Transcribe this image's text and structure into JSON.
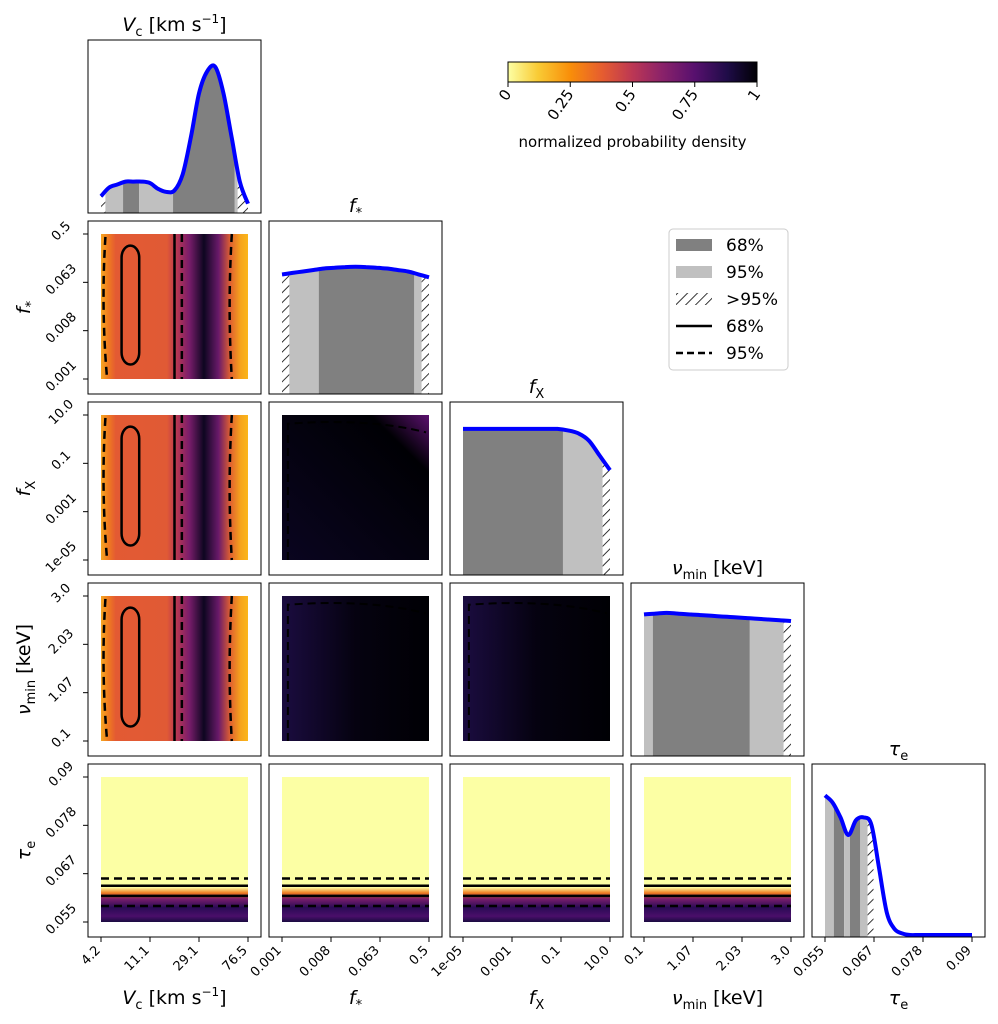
{
  "chart_data": {
    "type": "corner",
    "params": [
      {
        "key": "vc",
        "label_main": "V",
        "label_sub": "c",
        "label_unit": " [km s",
        "label_sup": "−1",
        "label_end": "]",
        "ticks": [
          "4.2",
          "11.1",
          "29.1",
          "76.5"
        ]
      },
      {
        "key": "fstar",
        "label_main": "f",
        "label_sub": "*",
        "label_unit": "",
        "label_sup": "",
        "label_end": "",
        "ticks": [
          "0.001",
          "0.008",
          "0.063",
          "0.5"
        ]
      },
      {
        "key": "fx",
        "label_main": "f",
        "label_sub": "X",
        "label_unit": "",
        "label_sup": "",
        "label_end": "",
        "ticks": [
          "1e-05",
          "0.001",
          "0.1",
          "10.0"
        ]
      },
      {
        "key": "numin",
        "label_main": "ν",
        "label_sub": "min",
        "label_unit": " [keV]",
        "label_sup": "",
        "label_end": "",
        "ticks": [
          "0.1",
          "1.07",
          "2.03",
          "3.0"
        ]
      },
      {
        "key": "tau",
        "label_main": "τ",
        "label_sub": "e",
        "label_unit": "",
        "label_sup": "",
        "label_end": "",
        "ticks": [
          "0.055",
          "0.067",
          "0.078",
          "0.09"
        ]
      }
    ],
    "marginals": [
      {
        "curve": [
          0.1,
          0.16,
          0.18,
          0.2,
          0.2,
          0.2,
          0.19,
          0.15,
          0.13,
          0.14,
          0.25,
          0.5,
          0.8,
          0.95,
          0.98,
          0.8,
          0.5,
          0.2,
          0.05
        ],
        "bands": [
          [
            0,
            0.03,
            "h"
          ],
          [
            0.03,
            0.15,
            "95"
          ],
          [
            0.15,
            0.26,
            "68"
          ],
          [
            0.26,
            0.49,
            "95"
          ],
          [
            0.49,
            0.91,
            "68"
          ],
          [
            0.91,
            0.93,
            "95"
          ],
          [
            0.93,
            1.0,
            "h"
          ]
        ]
      },
      {
        "curve": [
          0.8,
          0.81,
          0.82,
          0.83,
          0.84,
          0.845,
          0.85,
          0.852,
          0.85,
          0.845,
          0.84,
          0.83,
          0.82,
          0.8,
          0.78
        ],
        "bands": [
          [
            0,
            0.05,
            "h"
          ],
          [
            0.05,
            0.25,
            "95"
          ],
          [
            0.25,
            0.9,
            "68"
          ],
          [
            0.9,
            0.95,
            "95"
          ],
          [
            0.95,
            1.0,
            "h"
          ]
        ]
      },
      {
        "curve": [
          0.98,
          0.98,
          0.98,
          0.98,
          0.98,
          0.98,
          0.98,
          0.98,
          0.98,
          0.98,
          0.97,
          0.95,
          0.9,
          0.8,
          0.7
        ],
        "bands": [
          [
            0,
            0.68,
            "68"
          ],
          [
            0.68,
            0.95,
            "95"
          ],
          [
            0.95,
            1.0,
            "h"
          ]
        ]
      },
      {
        "curve": [
          0.95,
          0.955,
          0.96,
          0.955,
          0.95,
          0.945,
          0.94,
          0.935,
          0.93,
          0.925,
          0.92,
          0.915,
          0.91,
          0.905
        ],
        "bands": [
          [
            0,
            0.06,
            "95"
          ],
          [
            0.06,
            0.72,
            "68"
          ],
          [
            0.72,
            0.95,
            "95"
          ],
          [
            0.95,
            1.0,
            "h"
          ]
        ]
      },
      {
        "curve": [
          0.95,
          0.9,
          0.8,
          0.68,
          0.78,
          0.8,
          0.75,
          0.45,
          0.15,
          0.04,
          0.01,
          0.0,
          0.0,
          0.0,
          0.0,
          0.0,
          0.0,
          0.0,
          0.0,
          0.0
        ],
        "bands": [
          [
            0,
            0.06,
            "95"
          ],
          [
            0.06,
            0.13,
            "68"
          ],
          [
            0.13,
            0.17,
            "95"
          ],
          [
            0.17,
            0.24,
            "68"
          ],
          [
            0.24,
            0.29,
            "95"
          ],
          [
            0.29,
            0.33,
            "h"
          ]
        ]
      }
    ],
    "colorbar": {
      "label": "normalized probability density",
      "ticks": [
        "0",
        "0.25",
        "0.5",
        "0.75",
        "1"
      ],
      "range": [
        0,
        1
      ],
      "colormap": "inferno_r"
    },
    "legend": [
      {
        "label": "68%",
        "kind": "band68"
      },
      {
        "label": "95%",
        "kind": "band95"
      },
      {
        "label": ">95%",
        "kind": "hatch"
      },
      {
        "label": "68%",
        "kind": "solid"
      },
      {
        "label": "95%",
        "kind": "dashed"
      }
    ],
    "colors": {
      "curve": "#0000ff",
      "band68": "#808080",
      "band95": "#c0c0c0"
    }
  }
}
